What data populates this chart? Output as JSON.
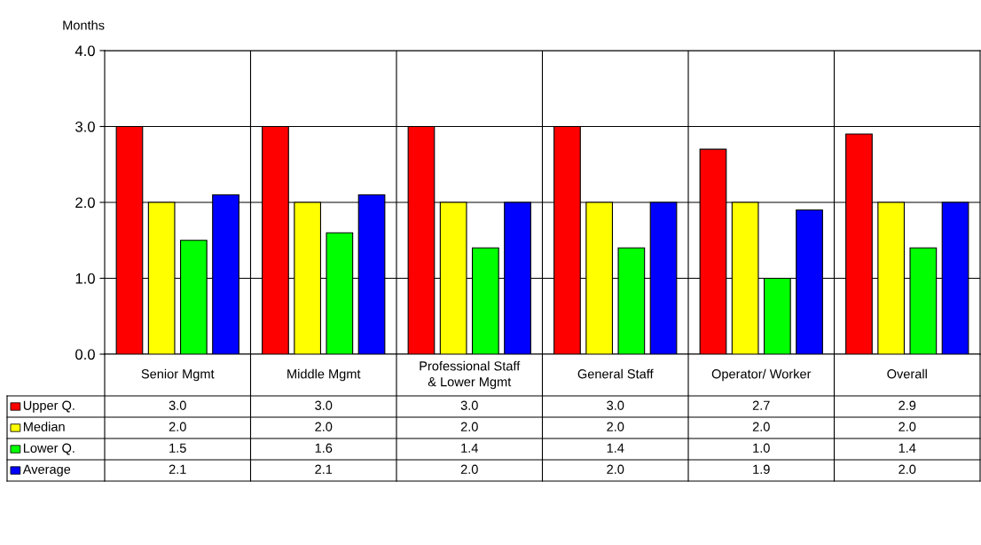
{
  "chart_data": {
    "type": "bar",
    "ylabel": "Months",
    "categories": [
      "Senior Mgmt",
      "Middle Mgmt",
      "Professional Staff\n& Lower Mgmt",
      "General Staff",
      "Operator/ Worker",
      "Overall"
    ],
    "series": [
      {
        "name": "Upper Q.",
        "color": "#ff0000",
        "values": [
          3.0,
          3.0,
          3.0,
          3.0,
          2.7,
          2.9
        ],
        "value_labels": [
          "3.0",
          "3.0",
          "3.0",
          "3.0",
          "2.7",
          "2.9"
        ]
      },
      {
        "name": "Median",
        "color": "#ffff00",
        "values": [
          2.0,
          2.0,
          2.0,
          2.0,
          2.0,
          2.0
        ],
        "value_labels": [
          "2.0",
          "2.0",
          "2.0",
          "2.0",
          "2.0",
          "2.0"
        ]
      },
      {
        "name": "Lower Q.",
        "color": "#00ff00",
        "values": [
          1.5,
          1.6,
          1.4,
          1.4,
          1.0,
          1.4
        ],
        "value_labels": [
          "1.5",
          "1.6",
          "1.4",
          "1.4",
          "1.0",
          "1.4"
        ]
      },
      {
        "name": "Average",
        "color": "#0000ff",
        "values": [
          2.1,
          2.1,
          2.0,
          2.0,
          1.9,
          2.0
        ],
        "value_labels": [
          "2.1",
          "2.1",
          "2.0",
          "2.0",
          "1.9",
          "2.0"
        ]
      }
    ],
    "ylim": [
      0,
      4
    ],
    "yticks": [
      {
        "value": 0,
        "label": "0.0"
      },
      {
        "value": 1,
        "label": "1.0"
      },
      {
        "value": 2,
        "label": "2.0"
      },
      {
        "value": 3,
        "label": "3.0"
      },
      {
        "value": 4,
        "label": "4.0"
      }
    ],
    "grid": true,
    "legend": "bottom"
  }
}
